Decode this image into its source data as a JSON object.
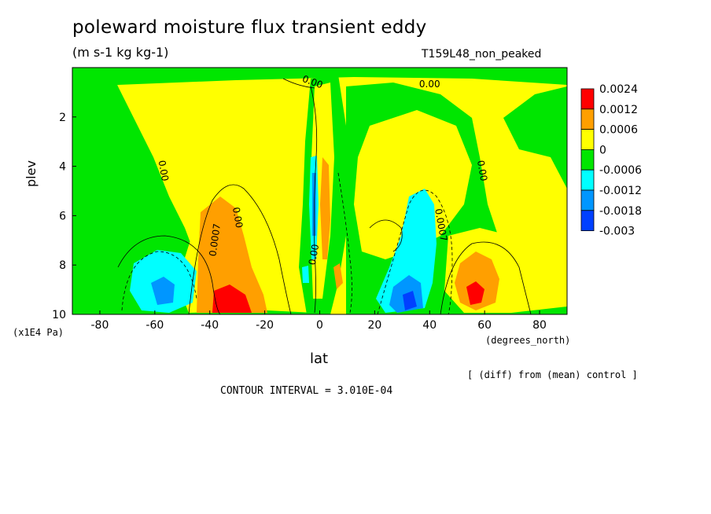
{
  "chart_data": {
    "type": "heatmap",
    "title": "poleward moisture flux transient eddy",
    "units": "(m s-1 kg kg-1)",
    "run_label": "T159L48_non_peaked",
    "xlabel": "lat",
    "x_unit_label": "(degrees_north)",
    "ylabel": "plev",
    "y_unit_label": "(x1E4 Pa)",
    "xlim": [
      -90,
      90
    ],
    "ylim": [
      10,
      0
    ],
    "x_ticks": [
      "-80",
      "-60",
      "-40",
      "-20",
      "0",
      "20",
      "40",
      "60",
      "80"
    ],
    "y_ticks": [
      "2",
      "4",
      "6",
      "8",
      "10"
    ],
    "colorbar_labels": [
      "0.0024",
      "0.0012",
      "0.0006",
      "0",
      "-0.0006",
      "-0.0012",
      "-0.0018",
      "-0.003"
    ],
    "colorbar_colors": [
      "#ff0000",
      "#ff9f00",
      "#ffff00",
      "#00e600",
      "#00ffff",
      "#0096ff",
      "#0040ff"
    ],
    "contour_labels": [
      "0.00",
      "0.00",
      "0.00",
      "0.00",
      "0.0007",
      "0.0007",
      "0.00",
      "0.00"
    ],
    "note": "[ (diff) from (mean) control ]",
    "contour_interval": "CONTOUR INTERVAL = 3.010E-04"
  }
}
